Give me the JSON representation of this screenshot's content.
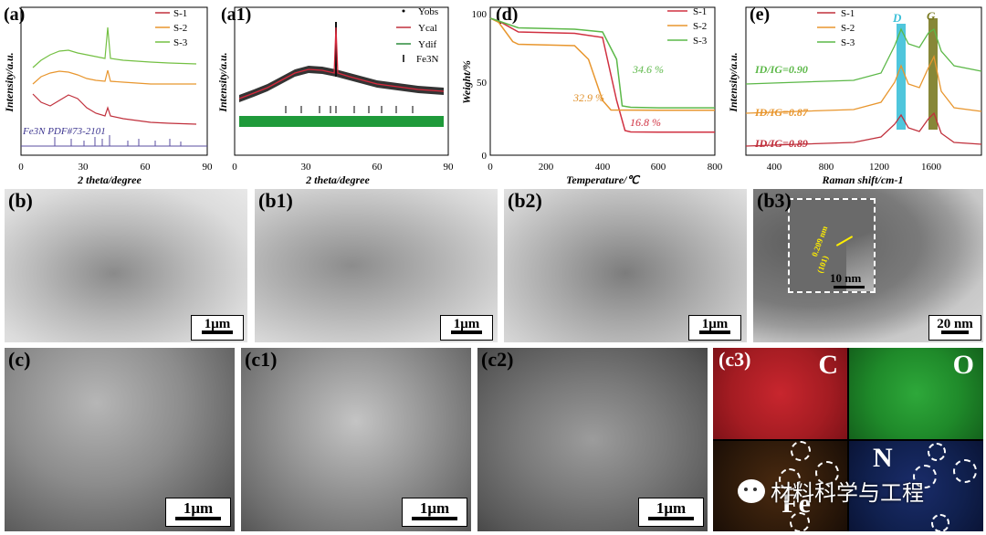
{
  "charts": {
    "a": {
      "label": "(a)",
      "xlabel": "2 theta/degree",
      "ylabel": "Intensity/a.u.",
      "xticks": [
        "0",
        "30",
        "60",
        "90"
      ],
      "legend": [
        {
          "name": "S-1",
          "color": "#c0303c"
        },
        {
          "name": "S-2",
          "color": "#e8962e"
        },
        {
          "name": "S-3",
          "color": "#74c043"
        }
      ],
      "ref_label": "Fe3N PDF#73-2101"
    },
    "a1": {
      "label": "(a1)",
      "xlabel": "2 theta/degree",
      "ylabel": "Intensity/a.u.",
      "xticks": [
        "0",
        "30",
        "60",
        "90"
      ],
      "legend": [
        "Yobs",
        "Ycal",
        "Ydif",
        "Fe3N"
      ]
    },
    "d": {
      "label": "(d)",
      "xlabel": "Temperature/℃",
      "ylabel": "Weight/%",
      "xticks": [
        "0",
        "200",
        "400",
        "600",
        "800"
      ],
      "yticks": [
        "0",
        "50",
        "100"
      ],
      "legend": [
        {
          "name": "S-1",
          "color": "#d03040"
        },
        {
          "name": "S-2",
          "color": "#e8962e"
        },
        {
          "name": "S-3",
          "color": "#5cb848"
        }
      ],
      "annotations": [
        "32.9 %",
        "34.6 %",
        "16.8 %"
      ]
    },
    "e": {
      "label": "(e)",
      "xlabel": "Raman shift/cm-1",
      "ylabel": "Intensity/a.u.",
      "xticks": [
        "400",
        "800",
        "1200",
        "1600"
      ],
      "legend": [
        {
          "name": "S-1",
          "color": "#c0303c"
        },
        {
          "name": "S-2",
          "color": "#e8962e"
        },
        {
          "name": "S-3",
          "color": "#5cb848"
        }
      ],
      "band_labels": [
        "D",
        "G"
      ],
      "ratios": [
        "ID/IG=0.90",
        "ID/IG=0.87",
        "ID/IG=0.89"
      ]
    }
  },
  "chart_data": [
    {
      "type": "line",
      "xlabel": "Temperature/℃",
      "ylabel": "Weight/%",
      "xlim": [
        0,
        800
      ],
      "ylim": [
        0,
        100
      ],
      "series": [
        {
          "name": "S-1",
          "x": [
            0,
            30,
            100,
            200,
            300,
            400,
            450,
            480,
            500,
            600,
            700,
            800
          ],
          "values": [
            100,
            98,
            90,
            89.5,
            89,
            86,
            40,
            18,
            17,
            16.8,
            16.8,
            16.8
          ]
        },
        {
          "name": "S-2",
          "x": [
            0,
            30,
            80,
            100,
            200,
            300,
            350,
            400,
            430,
            600,
            700,
            800
          ],
          "values": [
            100,
            97,
            83,
            81,
            80.5,
            80,
            70,
            40,
            33,
            32.9,
            32.9,
            32.9
          ]
        },
        {
          "name": "S-3",
          "x": [
            0,
            30,
            100,
            200,
            300,
            400,
            450,
            470,
            500,
            600,
            700,
            800
          ],
          "values": [
            100,
            98,
            93,
            92.5,
            92,
            90,
            70,
            36,
            35,
            34.6,
            34.6,
            34.6
          ]
        }
      ]
    }
  ],
  "images": {
    "b": {
      "label": "(b)",
      "scale": "1μm"
    },
    "b1": {
      "label": "(b1)",
      "scale": "1μm"
    },
    "b2": {
      "label": "(b2)",
      "scale": "1μm"
    },
    "b3": {
      "label": "(b3)",
      "scale": "20 nm",
      "inset_scale": "10 nm",
      "lattice": "0.209 nm",
      "plane": "(101)"
    },
    "c": {
      "label": "(c)",
      "scale": "1μm"
    },
    "c1": {
      "label": "(c1)",
      "scale": "1μm"
    },
    "c2": {
      "label": "(c2)",
      "scale": "1μm"
    },
    "c3": {
      "label": "(c3)",
      "elements": [
        "C",
        "O",
        "Fe",
        "N"
      ]
    }
  },
  "watermark": "材料科学与工程"
}
